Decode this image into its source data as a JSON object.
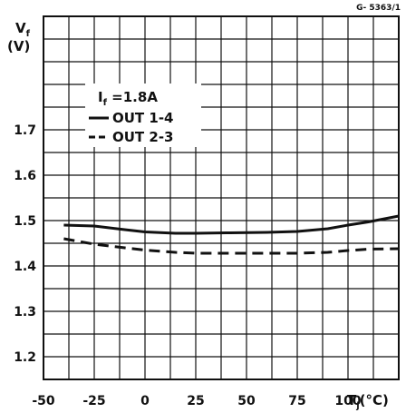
{
  "figure_code": "G- 5363/1",
  "chart_data": {
    "type": "line",
    "title": "",
    "ylabel": "V",
    "ylabel_sub": "f",
    "yunit": "(V)",
    "xlabel": "T",
    "xlabel_sub": "j",
    "xunit": "(°C)",
    "xlim": [
      -50,
      125
    ],
    "ylim": [
      1.15,
      1.95
    ],
    "x_ticks": [
      -50,
      -25,
      0,
      25,
      50,
      75,
      100
    ],
    "x_tick_labels": [
      "-50",
      "-25",
      "0",
      "25",
      "50",
      "75",
      "100"
    ],
    "y_ticks": [
      1.2,
      1.3,
      1.4,
      1.5,
      1.6,
      1.7
    ],
    "y_tick_labels": [
      "1.2",
      "1.3",
      "1.4",
      "1.5",
      "1.6",
      "1.7"
    ],
    "grid": true,
    "legend": {
      "placement": "top-left",
      "condition_label": "I",
      "condition_sub": "f",
      "condition_value": " =1.8A"
    },
    "series": [
      {
        "name": "OUT 1-4",
        "style": "solid",
        "x": [
          -40,
          -25,
          -10,
          0,
          15,
          25,
          40,
          60,
          75,
          90,
          100,
          110,
          125
        ],
        "y": [
          1.49,
          1.488,
          1.48,
          1.475,
          1.472,
          1.472,
          1.473,
          1.474,
          1.476,
          1.482,
          1.49,
          1.497,
          1.51
        ]
      },
      {
        "name": "OUT 2-3",
        "style": "dashed",
        "x": [
          -40,
          -25,
          -10,
          0,
          15,
          25,
          40,
          60,
          75,
          90,
          100,
          110,
          125
        ],
        "y": [
          1.46,
          1.448,
          1.44,
          1.435,
          1.43,
          1.428,
          1.428,
          1.428,
          1.428,
          1.43,
          1.434,
          1.437,
          1.438
        ]
      }
    ]
  }
}
